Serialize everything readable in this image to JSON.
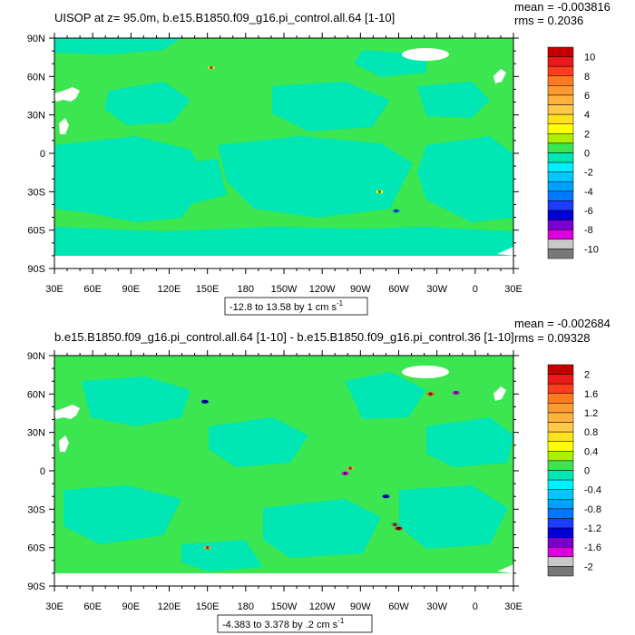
{
  "chart_data": [
    {
      "type": "heatmap",
      "title": "UISOP at z=  95.0m, b.e15.B1850.f09_g16.pi_control.all.64 [1-10]",
      "stats": {
        "mean": "mean = -0.003816",
        "rms": "rms = 0.2036"
      },
      "x_ticks": [
        "30E",
        "60E",
        "90E",
        "120E",
        "150E",
        "180",
        "150W",
        "120W",
        "90W",
        "60W",
        "30W",
        "0",
        "30E"
      ],
      "y_ticks": [
        "90N",
        "60N",
        "30N",
        "0",
        "30S",
        "60S",
        "90S"
      ],
      "range_label": "-12.8 to 13.58 by 1 cm s",
      "range_unit_exp": "-1",
      "colorbar": {
        "levels": [
          "10",
          "8",
          "6",
          "4",
          "2",
          "0",
          "-2",
          "-4",
          "-6",
          "-8",
          "-10"
        ],
        "values": [
          10,
          9,
          8,
          7,
          6,
          5,
          4,
          3,
          2,
          1,
          0,
          -1,
          -2,
          -3,
          -4,
          -5,
          -6,
          -7,
          -8,
          -9,
          -10
        ],
        "colors": [
          "#c40000",
          "#ea1a1a",
          "#ff3c1e",
          "#ff7a1e",
          "#ff9a32",
          "#ffb23c",
          "#ffc846",
          "#ffe11e",
          "#ffff00",
          "#aaf000",
          "#3ce650",
          "#00e6b4",
          "#00f0ff",
          "#00c8ff",
          "#00a0ff",
          "#0078ff",
          "#1e3cff",
          "#0000d2",
          "#7800d2",
          "#dc00dc",
          "#c8c8c8",
          "#787878"
        ]
      },
      "features": {
        "background_value": 0,
        "positive_blotches": [
          {
            "lon": 153,
            "lat": 67,
            "value": 4
          },
          {
            "lon": 285,
            "lat": -30,
            "value": 2
          }
        ],
        "negative_blotches": [
          {
            "lon": 298,
            "lat": -45,
            "value": -4
          }
        ]
      }
    },
    {
      "type": "heatmap",
      "title": "b.e15.B1850.f09_g16.pi_control.all.64 [1-10] - b.e15.B1850.f09_g16.pi_control.36 [1-10]",
      "stats": {
        "mean": "mean = -0.002684",
        "rms": "rms = 0.09328"
      },
      "x_ticks": [
        "30E",
        "60E",
        "90E",
        "120E",
        "150E",
        "180",
        "150W",
        "120W",
        "90W",
        "60W",
        "30W",
        "0",
        "30E"
      ],
      "y_ticks": [
        "90N",
        "60N",
        "30N",
        "0",
        "30S",
        "60S",
        "90S"
      ],
      "range_label": "-4.383 to 3.378 by .2 cm s",
      "range_unit_exp": "-1",
      "colorbar": {
        "levels": [
          "2",
          "1.6",
          "1.2",
          "0.8",
          "0.4",
          "0",
          "-0.4",
          "-0.8",
          "-1.2",
          "-1.6",
          "-2"
        ],
        "values": [
          2,
          1.8,
          1.6,
          1.4,
          1.2,
          1,
          0.8,
          0.6,
          0.4,
          0.2,
          0,
          -0.2,
          -0.4,
          -0.6,
          -0.8,
          -1,
          -1.2,
          -1.4,
          -1.6,
          -1.8,
          -2
        ],
        "colors": [
          "#c40000",
          "#ea1a1a",
          "#ff3c1e",
          "#ff7a1e",
          "#ff9a32",
          "#ffb23c",
          "#ffc846",
          "#ffe11e",
          "#ffff00",
          "#aaf000",
          "#3ce650",
          "#00e6b4",
          "#00f0ff",
          "#00c8ff",
          "#00a0ff",
          "#0078ff",
          "#1e3cff",
          "#0000d2",
          "#7800d2",
          "#dc00dc",
          "#c8c8c8",
          "#787878"
        ]
      },
      "features": {
        "background_value": 0,
        "positive_blotches": [
          {
            "lon": 262,
            "lat": 2,
            "value": 1.2
          },
          {
            "lon": 325,
            "lat": 60,
            "value": 1.6
          },
          {
            "lon": 300,
            "lat": -45,
            "value": 2
          },
          {
            "lon": 150,
            "lat": -60,
            "value": 1.2
          }
        ],
        "negative_blotches": [
          {
            "lon": 258,
            "lat": -2,
            "value": -1.6
          },
          {
            "lon": 148,
            "lat": 54,
            "value": -1.2
          },
          {
            "lon": 297,
            "lat": -42,
            "value": -2
          },
          {
            "lon": 290,
            "lat": -20,
            "value": -1.2
          },
          {
            "lon": 345,
            "lat": 61,
            "value": -1.6
          }
        ]
      }
    }
  ]
}
